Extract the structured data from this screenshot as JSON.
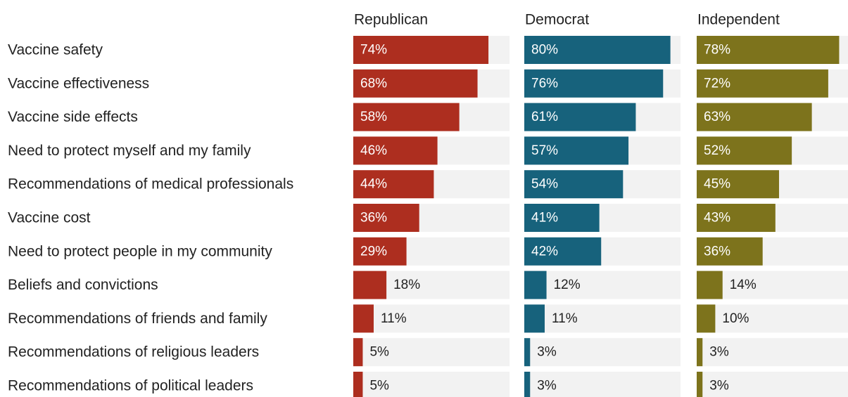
{
  "chart_data": {
    "type": "bar",
    "categories": [
      "Vaccine safety",
      "Vaccine effectiveness",
      "Vaccine side effects",
      "Need to protect myself and my family",
      "Recommendations of medical professionals",
      "Vaccine cost",
      "Need to protect people in my community",
      "Beliefs and convictions",
      "Recommendations of friends and family",
      "Recommendations of religious leaders",
      "Recommendations of political leaders"
    ],
    "series": [
      {
        "name": "Republican",
        "color": "#ad2e1f",
        "values": [
          74,
          68,
          58,
          46,
          44,
          36,
          29,
          18,
          11,
          5,
          5
        ]
      },
      {
        "name": "Democrat",
        "color": "#17627c",
        "values": [
          80,
          76,
          61,
          57,
          54,
          41,
          42,
          12,
          11,
          3,
          3
        ]
      },
      {
        "name": "Independent",
        "color": "#7d731c",
        "values": [
          78,
          72,
          63,
          52,
          45,
          43,
          36,
          14,
          10,
          3,
          3
        ]
      }
    ],
    "value_format": "{v}%",
    "xlim": [
      0,
      80
    ],
    "background_track_color": "#f2f2f2",
    "legend": "column headers above each panel",
    "grid": false
  }
}
